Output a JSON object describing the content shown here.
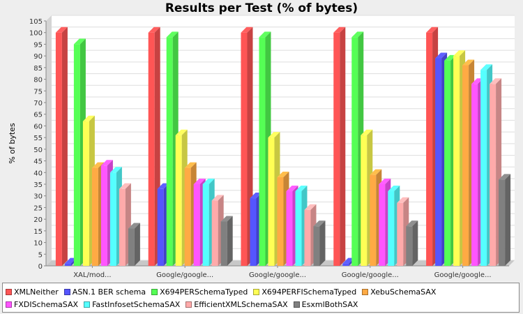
{
  "chart_data": {
    "type": "bar",
    "title": "Results per Test (% of bytes)",
    "xlabel": "",
    "ylabel": "% of bytes",
    "ylim": [
      0,
      105
    ],
    "ytick_step": 5,
    "grid": true,
    "legend_position": "bottom",
    "categories": [
      "XAL/mod...",
      "Google/google...",
      "Google/google...",
      "Google/google...",
      "Google/google..."
    ],
    "series": [
      {
        "name": "XMLNeither",
        "color": "#ff5555",
        "values": [
          100,
          100,
          100,
          100,
          100
        ]
      },
      {
        "name": "ASN.1 BER schema",
        "color": "#5555ff",
        "values": [
          1,
          33,
          29,
          1,
          89
        ]
      },
      {
        "name": "X694PERSchemaTyped",
        "color": "#55ff55",
        "values": [
          95,
          98,
          98,
          98,
          88
        ]
      },
      {
        "name": "X694PERFISchemaTyped",
        "color": "#ffff55",
        "values": [
          62,
          56,
          55,
          56,
          90
        ]
      },
      {
        "name": "XebuSchemaSAX",
        "color": "#ffaa44",
        "values": [
          42,
          42,
          38,
          39,
          86
        ]
      },
      {
        "name": "FXDISchemaSAX",
        "color": "#ff55ff",
        "values": [
          43,
          35,
          32,
          35,
          78
        ]
      },
      {
        "name": "FastInfosetSchemaSAX",
        "color": "#55ffff",
        "values": [
          40,
          35,
          32,
          32,
          84
        ]
      },
      {
        "name": "EfficientXMLSchemaSAX",
        "color": "#ffaaaa",
        "values": [
          33,
          28,
          24,
          27,
          78
        ]
      },
      {
        "name": "EsxmlBothSAX",
        "color": "#808080",
        "values": [
          16,
          19,
          17,
          17,
          37
        ]
      }
    ]
  }
}
